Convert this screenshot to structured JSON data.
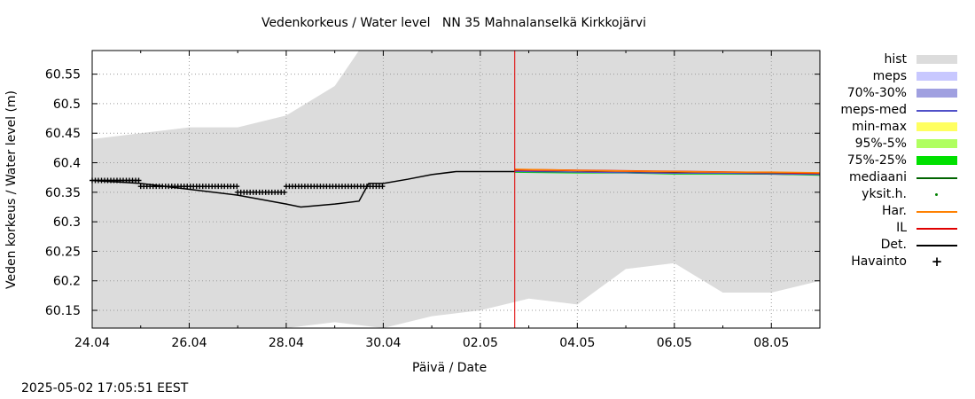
{
  "title": "Vedenkorkeus / Water level   NN 35 Mahnalanselkä Kirkkojärvi",
  "ylabel": "Veden korkeus / Water level (m)",
  "xlabel": "Päivä / Date",
  "timestamp": "2025-05-02 17:05:51 EEST",
  "chart_data": {
    "type": "line",
    "title": "Vedenkorkeus / Water level   NN 35 Mahnalanselkä Kirkkojärvi",
    "xlabel": "Päivä / Date",
    "ylabel": "Veden korkeus / Water level (m)",
    "xlim": [
      "2025-04-24",
      "2025-05-09"
    ],
    "ylim": [
      60.12,
      60.59
    ],
    "yticks": [
      60.15,
      60.2,
      60.25,
      60.3,
      60.35,
      60.4,
      60.45,
      60.5,
      60.55
    ],
    "xticks": [
      "24.04",
      "26.04",
      "28.04",
      "30.04",
      "02.05",
      "04.05",
      "06.05",
      "08.05"
    ],
    "xtick_days": [
      0,
      2,
      4,
      6,
      8,
      10,
      12,
      14
    ],
    "grid": true,
    "legend_position": "right",
    "now_marker_day": 8.71,
    "colors": {
      "hist": "#dcdcdc",
      "meps": "#c8c8ff",
      "p70_30": "#a0a0e0",
      "meps_med": "#5050c8",
      "min_max": "#ffff60",
      "p95_5": "#b0ff60",
      "p75_25": "#00e000",
      "mediaani": "#006400",
      "yksit": "#008000",
      "har": "#ff8000",
      "il": "#e00000",
      "det": "#000000",
      "havainto": "#000000",
      "now_line": "#e00000"
    },
    "series": [
      {
        "name": "hist",
        "kind": "band",
        "upper": [
          [
            0,
            60.44
          ],
          [
            1,
            60.45
          ],
          [
            2,
            60.46
          ],
          [
            3,
            60.46
          ],
          [
            4,
            60.48
          ],
          [
            5,
            60.53
          ],
          [
            5.5,
            60.59
          ],
          [
            15,
            60.59
          ]
        ],
        "lower": [
          [
            0,
            60.12
          ],
          [
            4,
            60.12
          ],
          [
            5,
            60.13
          ],
          [
            6,
            60.12
          ],
          [
            7,
            60.14
          ],
          [
            8,
            60.15
          ],
          [
            9,
            60.17
          ],
          [
            10,
            60.16
          ],
          [
            11,
            60.22
          ],
          [
            12,
            60.23
          ],
          [
            13,
            60.18
          ],
          [
            14,
            60.18
          ],
          [
            15,
            60.2
          ],
          [
            15,
            60.23
          ]
        ]
      },
      {
        "name": "Det.",
        "kind": "line",
        "points": [
          [
            0,
            60.37
          ],
          [
            1,
            60.365
          ],
          [
            2,
            60.355
          ],
          [
            3,
            60.345
          ],
          [
            4,
            60.33
          ],
          [
            4.3,
            60.325
          ],
          [
            5,
            60.33
          ],
          [
            5.5,
            60.335
          ],
          [
            5.7,
            60.365
          ],
          [
            6,
            60.365
          ],
          [
            6.5,
            60.372
          ],
          [
            7,
            60.38
          ],
          [
            7.5,
            60.385
          ],
          [
            8,
            60.385
          ],
          [
            8.71,
            60.385
          ],
          [
            15,
            60.38
          ]
        ]
      },
      {
        "name": "IL",
        "kind": "line",
        "points": [
          [
            8.71,
            60.388
          ],
          [
            10,
            60.387
          ],
          [
            11,
            60.386
          ],
          [
            12,
            60.385
          ],
          [
            13,
            60.384
          ],
          [
            14,
            60.383
          ],
          [
            15,
            60.382
          ]
        ]
      },
      {
        "name": "Har.",
        "kind": "line",
        "points": [
          [
            8.71,
            60.389
          ],
          [
            10,
            60.387
          ],
          [
            11,
            60.386
          ],
          [
            12,
            60.385
          ],
          [
            13,
            60.384
          ],
          [
            14,
            60.384
          ],
          [
            15,
            60.383
          ]
        ]
      },
      {
        "name": "75%-25%",
        "kind": "line",
        "points": [
          [
            8.71,
            60.384
          ],
          [
            10,
            60.383
          ],
          [
            11,
            60.383
          ],
          [
            12,
            60.381
          ],
          [
            13,
            60.381
          ],
          [
            14,
            60.381
          ],
          [
            15,
            60.379
          ]
        ]
      },
      {
        "name": "meps-med",
        "kind": "line",
        "points": [
          [
            8.71,
            60.385
          ],
          [
            10,
            60.384
          ],
          [
            11,
            60.383
          ],
          [
            12,
            60.382
          ],
          [
            13,
            60.382
          ],
          [
            14,
            60.381
          ],
          [
            15,
            60.38
          ]
        ]
      },
      {
        "name": "Havainto",
        "kind": "step-markers",
        "segments": [
          [
            0,
            1,
            60.37
          ],
          [
            1,
            3,
            60.36
          ],
          [
            3,
            4,
            60.35
          ],
          [
            4,
            6,
            60.36
          ]
        ]
      }
    ]
  },
  "legend": [
    {
      "label": "hist",
      "type": "box",
      "color": "#dcdcdc"
    },
    {
      "label": "meps",
      "type": "box",
      "color": "#c8c8ff"
    },
    {
      "label": "70%-30%",
      "type": "box",
      "color": "#a0a0e0"
    },
    {
      "label": "meps-med",
      "type": "line",
      "color": "#5050c8"
    },
    {
      "label": "min-max",
      "type": "box",
      "color": "#ffff60"
    },
    {
      "label": "95%-5%",
      "type": "box",
      "color": "#b0ff60"
    },
    {
      "label": "75%-25%",
      "type": "box",
      "color": "#00e000"
    },
    {
      "label": "mediaani",
      "type": "line",
      "color": "#006400"
    },
    {
      "label": "yksit.h.",
      "type": "dot",
      "color": "#008000"
    },
    {
      "label": "Har.",
      "type": "line",
      "color": "#ff8000"
    },
    {
      "label": "IL",
      "type": "line",
      "color": "#e00000"
    },
    {
      "label": "Det.",
      "type": "line",
      "color": "#000000"
    },
    {
      "label": "Havainto",
      "type": "plus",
      "color": "#000000"
    }
  ]
}
